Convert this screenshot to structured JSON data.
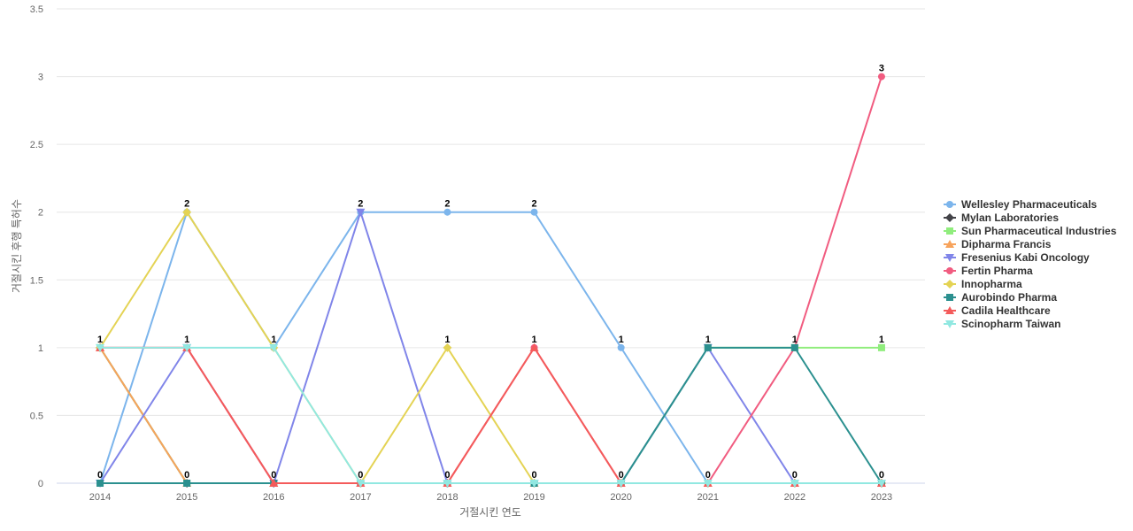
{
  "chart_data": {
    "type": "line",
    "xlabel": "거절시킨 연도",
    "ylabel": "거절시킨 후행 특허수",
    "ylim": [
      0,
      3.5
    ],
    "yticks": [
      0,
      0.5,
      1,
      1.5,
      2,
      2.5,
      3,
      3.5
    ],
    "ytick_labels": [
      "0",
      "0.5",
      "1",
      "1.5",
      "2",
      "2.5",
      "3",
      "3.5"
    ],
    "categories": [
      "2014",
      "2015",
      "2016",
      "2017",
      "2018",
      "2019",
      "2020",
      "2021",
      "2022",
      "2023"
    ],
    "grid": true,
    "legend_position": "right",
    "series": [
      {
        "name": "Wellesley Pharmaceuticals",
        "color": "#7cb5ec",
        "marker": "circle",
        "values": [
          0,
          2,
          1,
          2,
          2,
          2,
          1,
          0,
          0,
          0
        ]
      },
      {
        "name": "Mylan Laboratories",
        "color": "#434348",
        "marker": "diamond",
        "values": [
          1,
          0,
          0,
          0,
          0,
          0,
          0,
          0,
          0,
          0
        ]
      },
      {
        "name": "Sun Pharmaceutical Industries",
        "color": "#90ed7d",
        "marker": "square",
        "values": [
          1,
          0,
          0,
          0,
          0,
          0,
          0,
          1,
          1,
          1
        ]
      },
      {
        "name": "Dipharma Francis",
        "color": "#f7a35c",
        "marker": "triangle",
        "values": [
          1,
          0,
          0,
          0,
          0,
          0,
          0,
          0,
          0,
          0
        ]
      },
      {
        "name": "Fresenius Kabi Oncology",
        "color": "#8085e9",
        "marker": "triangle-down",
        "values": [
          0,
          1,
          0,
          2,
          0,
          0,
          0,
          1,
          0,
          0
        ]
      },
      {
        "name": "Fertin Pharma",
        "color": "#f15c80",
        "marker": "circle",
        "values": [
          1,
          1,
          0,
          0,
          0,
          1,
          0,
          0,
          1,
          3
        ]
      },
      {
        "name": "Innopharma",
        "color": "#e4d354",
        "marker": "diamond",
        "values": [
          1,
          2,
          1,
          0,
          1,
          0,
          0,
          0,
          0,
          0
        ]
      },
      {
        "name": "Aurobindo Pharma",
        "color": "#2b908f",
        "marker": "square",
        "values": [
          0,
          0,
          0,
          0,
          0,
          0,
          0,
          1,
          1,
          0
        ]
      },
      {
        "name": "Cadila Healthcare",
        "color": "#f45b5b",
        "marker": "triangle",
        "values": [
          1,
          1,
          0,
          0,
          0,
          1,
          0,
          0,
          0,
          0
        ]
      },
      {
        "name": "Scinopharm Taiwan",
        "color": "#91e8e1",
        "marker": "triangle-down",
        "values": [
          1,
          1,
          1,
          0,
          0,
          0,
          0,
          0,
          0,
          0
        ]
      }
    ],
    "data_labels": [
      {
        "x": "2014",
        "text": "1",
        "y": 1
      },
      {
        "x": "2014",
        "text": "0",
        "y": 0
      },
      {
        "x": "2015",
        "text": "2",
        "y": 2
      },
      {
        "x": "2015",
        "text": "1",
        "y": 1
      },
      {
        "x": "2015",
        "text": "0",
        "y": 0
      },
      {
        "x": "2016",
        "text": "1",
        "y": 1
      },
      {
        "x": "2016",
        "text": "0",
        "y": 0
      },
      {
        "x": "2017",
        "text": "2",
        "y": 2
      },
      {
        "x": "2017",
        "text": "0",
        "y": 0
      },
      {
        "x": "2018",
        "text": "2",
        "y": 2
      },
      {
        "x": "2018",
        "text": "1",
        "y": 1
      },
      {
        "x": "2018",
        "text": "0",
        "y": 0
      },
      {
        "x": "2019",
        "text": "2",
        "y": 2
      },
      {
        "x": "2019",
        "text": "1",
        "y": 1
      },
      {
        "x": "2019",
        "text": "0",
        "y": 0
      },
      {
        "x": "2020",
        "text": "1",
        "y": 1
      },
      {
        "x": "2020",
        "text": "0",
        "y": 0
      },
      {
        "x": "2021",
        "text": "1",
        "y": 1
      },
      {
        "x": "2021",
        "text": "0",
        "y": 0
      },
      {
        "x": "2022",
        "text": "1",
        "y": 1
      },
      {
        "x": "2022",
        "text": "0",
        "y": 0
      },
      {
        "x": "2023",
        "text": "3",
        "y": 3
      },
      {
        "x": "2023",
        "text": "1",
        "y": 1
      },
      {
        "x": "2023",
        "text": "0",
        "y": 0
      }
    ]
  }
}
